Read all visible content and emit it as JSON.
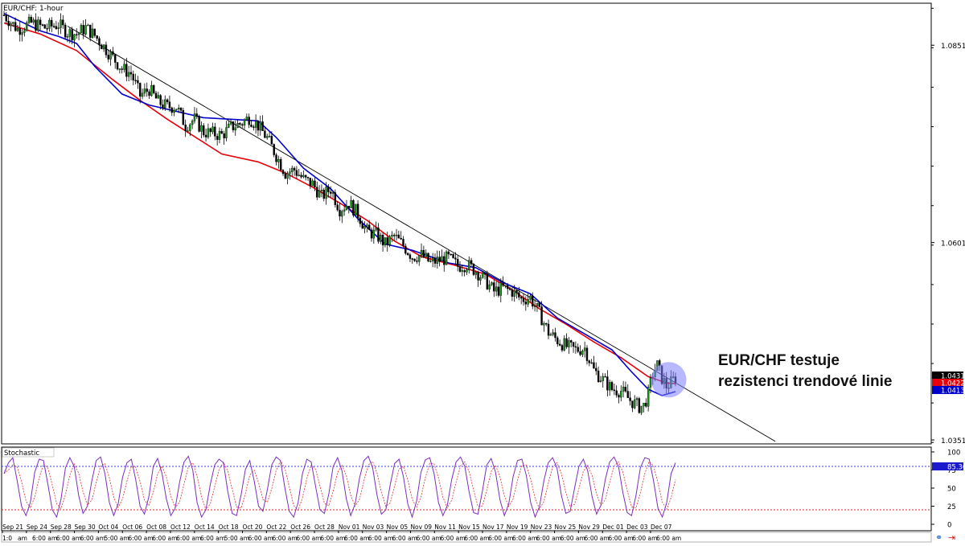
{
  "chart_data": [
    {
      "type": "candlestick",
      "title": "EUR/CHF: 1-hour",
      "annotation_lines": [
        "EUR/CHF testuje",
        "rezistenci trendové linie"
      ],
      "ylim": [
        1.03468,
        1.0905
      ],
      "y_ticks": [
        "1.08518",
        "1.06018",
        "1.03518"
      ],
      "price_labels": [
        {
          "value": "1.04314",
          "color": "#000000",
          "text_color": "#ffffff"
        },
        {
          "value": "1.04228",
          "color": "#e8000b",
          "text_color": "#ffffff"
        },
        {
          "value": "1.04135",
          "color": "#0000cc",
          "text_color": "#ffffff"
        }
      ],
      "x_date_labels": [
        "Sep 21",
        "Sep 24",
        "Sep 28",
        "Sep 30",
        "Oct 04",
        "Oct 06",
        "Oct 08",
        "Oct 12",
        "Oct 14",
        "Oct 18",
        "Oct 20",
        "Oct 22",
        "Oct 26",
        "Oct 28",
        "Nov 01",
        "Nov 03",
        "Nov 05",
        "Nov 09",
        "Nov 11",
        "Nov 15",
        "Nov 17",
        "Nov 19",
        "Nov 23",
        "Nov 25",
        "Nov 29",
        "Dec 01",
        "Dec 03",
        "Dec 07"
      ],
      "x_time_labels": [
        "1:0",
        "am",
        "6:00 am",
        "6:00 am",
        "6:00 am",
        "5:00 am",
        "6:00 am",
        "6:00 am",
        "6:00 am",
        "6:00 am",
        "5:00 am",
        "6:00 am",
        "6:00 am",
        "6:00 am",
        "6:00 am",
        "6:00 am",
        "6:00 am",
        "6:00 am",
        "6:00 am",
        "6:00 am",
        "6:00 am",
        "6:00 am",
        "6:00 am",
        "6:00 am",
        "6:00 am",
        "6:00 am",
        "6:00 am",
        "6:00 am",
        "6:00 am"
      ],
      "close_path": [
        [
          0,
          1.089
        ],
        [
          3,
          1.0872
        ],
        [
          6,
          1.088
        ],
        [
          9,
          1.0874
        ],
        [
          12,
          1.0878
        ],
        [
          14,
          1.0868
        ],
        [
          16,
          1.0866
        ],
        [
          18,
          1.0874
        ],
        [
          20,
          1.0864
        ],
        [
          22,
          1.085
        ],
        [
          24,
          1.0836
        ],
        [
          26,
          1.0822
        ],
        [
          28,
          1.0816
        ],
        [
          30,
          1.0788
        ],
        [
          32,
          1.0796
        ],
        [
          34,
          1.078
        ],
        [
          36,
          1.0774
        ],
        [
          38,
          1.0774
        ],
        [
          40,
          1.075
        ],
        [
          42,
          1.0758
        ],
        [
          44,
          1.0742
        ],
        [
          46,
          1.074
        ],
        [
          48,
          1.0738
        ],
        [
          50,
          1.0748
        ],
        [
          52,
          1.0752
        ],
        [
          54,
          1.076
        ],
        [
          56,
          1.075
        ],
        [
          58,
          1.0734
        ],
        [
          60,
          1.0712
        ],
        [
          62,
          1.069
        ],
        [
          64,
          1.0694
        ],
        [
          66,
          1.0682
        ],
        [
          68,
          1.0676
        ],
        [
          70,
          1.066
        ],
        [
          72,
          1.067
        ],
        [
          74,
          1.0644
        ],
        [
          76,
          1.0652
        ],
        [
          78,
          1.0638
        ],
        [
          80,
          1.0616
        ],
        [
          82,
          1.0612
        ],
        [
          84,
          1.06
        ],
        [
          86,
          1.061
        ],
        [
          88,
          1.0598
        ],
        [
          90,
          1.0584
        ],
        [
          92,
          1.0586
        ],
        [
          94,
          1.0576
        ],
        [
          96,
          1.058
        ],
        [
          98,
          1.0582
        ],
        [
          100,
          1.0572
        ],
        [
          102,
          1.0574
        ],
        [
          104,
          1.0566
        ],
        [
          106,
          1.0554
        ],
        [
          108,
          1.054
        ],
        [
          110,
          1.0544
        ],
        [
          112,
          1.054
        ],
        [
          114,
          1.053
        ],
        [
          116,
          1.0532
        ],
        [
          118,
          1.0512
        ],
        [
          120,
          1.0488
        ],
        [
          122,
          1.0478
        ],
        [
          124,
          1.047
        ],
        [
          126,
          1.0466
        ],
        [
          128,
          1.0468
        ],
        [
          130,
          1.044
        ],
        [
          132,
          1.0428
        ],
        [
          134,
          1.0416
        ],
        [
          136,
          1.0414
        ],
        [
          138,
          1.0402
        ],
        [
          140,
          1.0394
        ],
        [
          141,
          1.0395
        ],
        [
          142,
          1.041
        ],
        [
          143,
          1.0436
        ],
        [
          144,
          1.0446
        ],
        [
          145,
          1.043
        ],
        [
          146,
          1.042
        ],
        [
          147,
          1.0424
        ],
        [
          148,
          1.0431
        ]
      ],
      "ma_red": [
        [
          0,
          1.088
        ],
        [
          8,
          1.0866
        ],
        [
          16,
          1.0845
        ],
        [
          24,
          1.0808
        ],
        [
          30,
          1.0782
        ],
        [
          36,
          1.0758
        ],
        [
          42,
          1.0736
        ],
        [
          48,
          1.0714
        ],
        [
          56,
          1.0704
        ],
        [
          62,
          1.069
        ],
        [
          68,
          1.0672
        ],
        [
          74,
          1.0652
        ],
        [
          80,
          1.063
        ],
        [
          86,
          1.0604
        ],
        [
          92,
          1.0584
        ],
        [
          100,
          1.0572
        ],
        [
          106,
          1.0562
        ],
        [
          112,
          1.0542
        ],
        [
          118,
          1.0518
        ],
        [
          124,
          1.0498
        ],
        [
          130,
          1.0476
        ],
        [
          136,
          1.0456
        ],
        [
          142,
          1.0432
        ],
        [
          146,
          1.0424
        ],
        [
          148,
          1.0423
        ]
      ],
      "ma_blue": [
        [
          0,
          1.0892
        ],
        [
          8,
          1.087
        ],
        [
          12,
          1.0863
        ],
        [
          16,
          1.0854
        ],
        [
          20,
          1.0825
        ],
        [
          26,
          1.079
        ],
        [
          32,
          1.0776
        ],
        [
          38,
          1.0768
        ],
        [
          44,
          1.076
        ],
        [
          50,
          1.0758
        ],
        [
          56,
          1.0756
        ],
        [
          60,
          1.0735
        ],
        [
          66,
          1.0696
        ],
        [
          72,
          1.067
        ],
        [
          78,
          1.0632
        ],
        [
          84,
          1.06
        ],
        [
          90,
          1.0592
        ],
        [
          98,
          1.0576
        ],
        [
          104,
          1.057
        ],
        [
          110,
          1.0551
        ],
        [
          116,
          1.0537
        ],
        [
          122,
          1.0506
        ],
        [
          128,
          1.0486
        ],
        [
          134,
          1.0466
        ],
        [
          138,
          1.044
        ],
        [
          142,
          1.0416
        ],
        [
          145,
          1.0408
        ],
        [
          148,
          1.0413
        ]
      ],
      "trend_line": [
        [
          14,
          1.0876
        ],
        [
          170,
          1.035
        ]
      ],
      "highlight": {
        "x": 146.5,
        "y": 1.0428,
        "color": "#7d7dff"
      }
    },
    {
      "type": "line",
      "title": "Stochastic",
      "ylim": [
        0,
        100
      ],
      "y_ticks": [
        100,
        75,
        50,
        25,
        0
      ],
      "levels": [
        {
          "value": 80,
          "color": "#3a3aff"
        },
        {
          "value": 20,
          "color": "#e02020"
        }
      ],
      "current_label": "85.36",
      "colors": {
        "k": "#7b2fbe",
        "d": "#e03030"
      },
      "k_values": [
        70,
        85,
        92,
        60,
        25,
        12,
        30,
        72,
        90,
        88,
        55,
        20,
        10,
        35,
        78,
        92,
        80,
        40,
        15,
        25,
        60,
        88,
        93,
        70,
        30,
        12,
        28,
        65,
        85,
        90,
        62,
        25,
        14,
        38,
        80,
        91,
        70,
        35,
        12,
        22,
        58,
        86,
        94,
        75,
        30,
        10,
        20,
        55,
        82,
        90,
        85,
        45,
        15,
        12,
        40,
        76,
        88,
        60,
        25,
        18,
        48,
        82,
        93,
        88,
        50,
        18,
        10,
        30,
        70,
        90,
        86,
        52,
        20,
        15,
        42,
        80,
        92,
        74,
        35,
        12,
        28,
        64,
        88,
        94,
        78,
        40,
        14,
        20,
        55,
        84,
        90,
        66,
        28,
        10,
        32,
        72,
        89,
        92,
        70,
        30,
        12,
        26,
        62,
        86,
        93,
        80,
        44,
        16,
        14,
        46,
        82,
        91,
        72,
        34,
        12,
        28,
        66,
        88,
        90,
        68,
        30,
        10,
        24,
        60,
        85,
        92,
        78,
        40,
        15,
        18,
        50,
        80,
        90,
        74,
        38,
        14,
        26,
        62,
        86,
        93,
        80,
        44,
        16,
        12,
        40,
        78,
        92,
        90,
        60,
        22,
        10,
        30,
        70,
        85
      ]
    }
  ]
}
